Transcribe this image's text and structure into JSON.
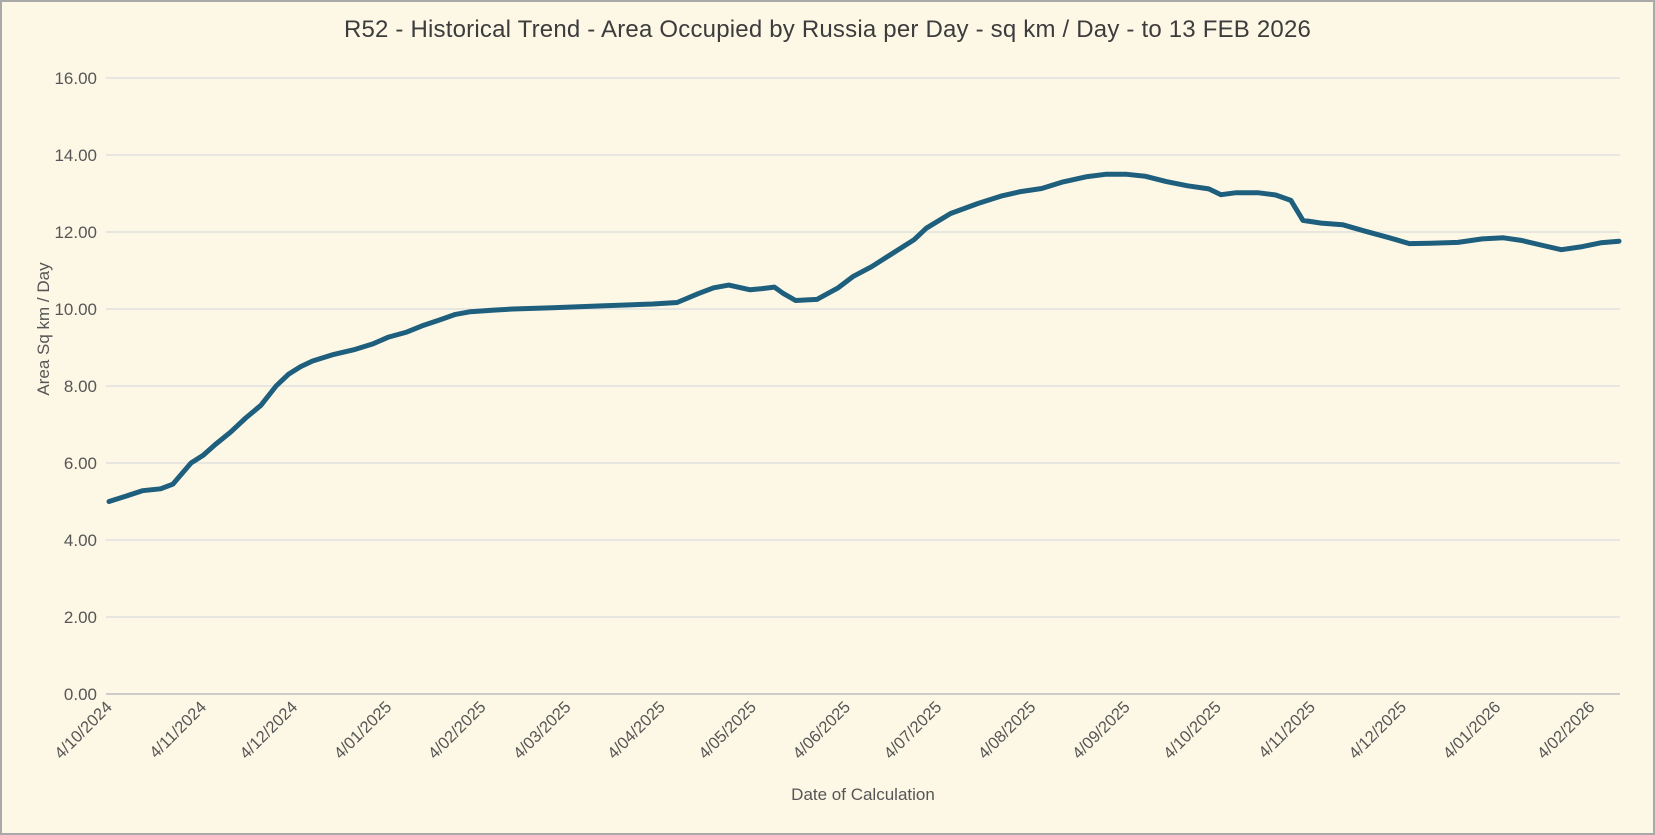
{
  "window": {
    "background_color": "#fdf8e6",
    "border_color": "#a9a9a9"
  },
  "chart_data": {
    "type": "line",
    "title": "R52 - Historical Trend - Area Occupied by Russia per Day - sq km / Day - to 13 FEB 2026",
    "xlabel": "Date of Calculation",
    "ylabel": "Area Sq km / Day",
    "ylim": [
      0,
      16
    ],
    "ytick_step": 2,
    "y_ticks": [
      {
        "value": 0,
        "label": "0.00"
      },
      {
        "value": 2,
        "label": "2.00"
      },
      {
        "value": 4,
        "label": "4.00"
      },
      {
        "value": 6,
        "label": "6.00"
      },
      {
        "value": 8,
        "label": "8.00"
      },
      {
        "value": 10,
        "label": "10.00"
      },
      {
        "value": 12,
        "label": "12.00"
      },
      {
        "value": 14,
        "label": "14.00"
      },
      {
        "value": 16,
        "label": "16.00"
      }
    ],
    "x_ticks": [
      {
        "label": "4/10/2024",
        "day": 0
      },
      {
        "label": "4/11/2024",
        "day": 31
      },
      {
        "label": "4/12/2024",
        "day": 61
      },
      {
        "label": "4/01/2025",
        "day": 92
      },
      {
        "label": "4/02/2025",
        "day": 123
      },
      {
        "label": "4/03/2025",
        "day": 151
      },
      {
        "label": "4/04/2025",
        "day": 182
      },
      {
        "label": "4/05/2025",
        "day": 212
      },
      {
        "label": "4/06/2025",
        "day": 243
      },
      {
        "label": "4/07/2025",
        "day": 273
      },
      {
        "label": "4/08/2025",
        "day": 304
      },
      {
        "label": "4/09/2025",
        "day": 335
      },
      {
        "label": "4/10/2025",
        "day": 365
      },
      {
        "label": "4/11/2025",
        "day": 396
      },
      {
        "label": "4/12/2025",
        "day": 426
      },
      {
        "label": "4/01/2026",
        "day": 457
      },
      {
        "label": "4/02/2026",
        "day": 488
      }
    ],
    "x_domain_days": [
      0,
      497
    ],
    "x_tick_rotation_deg": -45,
    "grid": true,
    "legend": false,
    "line_color": "#1e5f7e",
    "gridline_color": "#dcdcdc",
    "axisline_color": "#bebebe",
    "series": [
      {
        "name": "Area Occupied by Russia per Day",
        "units": "sq km / Day",
        "points": [
          [
            0,
            5.0
          ],
          [
            6,
            5.15
          ],
          [
            11,
            5.28
          ],
          [
            17,
            5.33
          ],
          [
            21,
            5.45
          ],
          [
            27,
            6.0
          ],
          [
            31,
            6.2
          ],
          [
            35,
            6.48
          ],
          [
            40,
            6.8
          ],
          [
            45,
            7.17
          ],
          [
            50,
            7.5
          ],
          [
            55,
            8.0
          ],
          [
            59,
            8.3
          ],
          [
            63,
            8.5
          ],
          [
            67,
            8.65
          ],
          [
            74,
            8.82
          ],
          [
            81,
            8.95
          ],
          [
            87,
            9.1
          ],
          [
            92,
            9.27
          ],
          [
            98,
            9.4
          ],
          [
            103,
            9.56
          ],
          [
            109,
            9.72
          ],
          [
            114,
            9.86
          ],
          [
            119,
            9.93
          ],
          [
            126,
            9.97
          ],
          [
            133,
            10.0
          ],
          [
            146,
            10.03
          ],
          [
            162,
            10.08
          ],
          [
            179,
            10.13
          ],
          [
            187,
            10.17
          ],
          [
            194,
            10.4
          ],
          [
            199,
            10.55
          ],
          [
            204,
            10.62
          ],
          [
            211,
            10.5
          ],
          [
            215,
            10.53
          ],
          [
            219,
            10.57
          ],
          [
            222,
            10.4
          ],
          [
            226,
            10.22
          ],
          [
            233,
            10.25
          ],
          [
            240,
            10.55
          ],
          [
            245,
            10.85
          ],
          [
            251,
            11.1
          ],
          [
            256,
            11.35
          ],
          [
            261,
            11.6
          ],
          [
            265,
            11.8
          ],
          [
            269,
            12.1
          ],
          [
            277,
            12.48
          ],
          [
            286,
            12.74
          ],
          [
            294,
            12.94
          ],
          [
            300,
            13.05
          ],
          [
            307,
            13.13
          ],
          [
            314,
            13.3
          ],
          [
            322,
            13.44
          ],
          [
            328,
            13.5
          ],
          [
            335,
            13.5
          ],
          [
            341,
            13.45
          ],
          [
            348,
            13.31
          ],
          [
            355,
            13.2
          ],
          [
            362,
            13.12
          ],
          [
            366,
            12.97
          ],
          [
            371,
            13.02
          ],
          [
            378,
            13.02
          ],
          [
            384,
            12.96
          ],
          [
            389,
            12.82
          ],
          [
            393,
            12.3
          ],
          [
            399,
            12.23
          ],
          [
            406,
            12.19
          ],
          [
            413,
            12.03
          ],
          [
            421,
            11.86
          ],
          [
            428,
            11.7
          ],
          [
            435,
            11.71
          ],
          [
            444,
            11.73
          ],
          [
            452,
            11.82
          ],
          [
            459,
            11.85
          ],
          [
            465,
            11.78
          ],
          [
            472,
            11.65
          ],
          [
            478,
            11.54
          ],
          [
            485,
            11.62
          ],
          [
            491,
            11.72
          ],
          [
            497,
            11.76
          ]
        ]
      }
    ]
  }
}
